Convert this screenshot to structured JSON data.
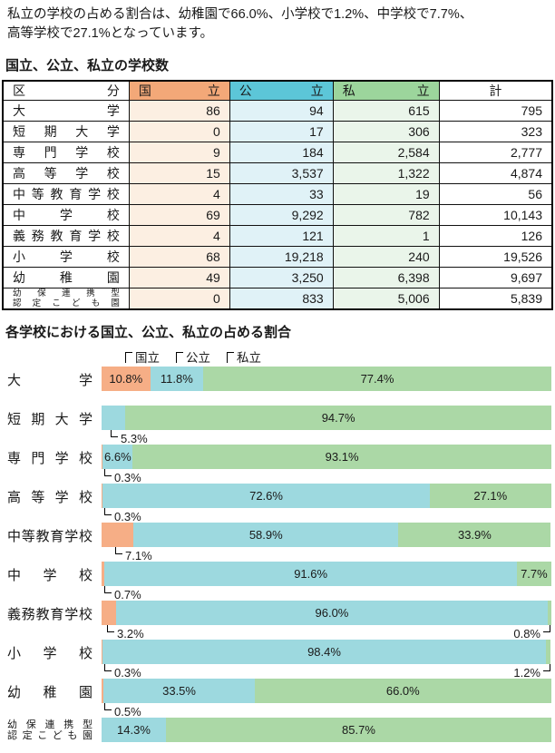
{
  "intro": {
    "line1": "私立の学校の占める割合は、幼稚園で66.0%、小学校で1.2%、中学校で7.7%、",
    "line2": "高等学校で27.1%となっています。"
  },
  "colors": {
    "national_header": "#F3A878",
    "public_header": "#5CC6D8",
    "private_header": "#9CD59C",
    "national_cell": "#FCEFE2",
    "public_cell": "#E0F2F7",
    "private_cell": "#EAF5EA",
    "national_bar": "#F6AE86",
    "public_bar": "#9DD9DF",
    "private_bar": "#ABD8A6"
  },
  "table_section": {
    "title": "国立、公立、私立の学校数",
    "headers": {
      "category": "区分",
      "national": "国立",
      "public": "公立",
      "private": "私立",
      "total": "計"
    },
    "rows": [
      {
        "label": "大学",
        "national": "86",
        "public": "94",
        "private": "615",
        "total": "795"
      },
      {
        "label": "短期大学",
        "national": "0",
        "public": "17",
        "private": "306",
        "total": "323"
      },
      {
        "label": "専門学校",
        "national": "9",
        "public": "184",
        "private": "2,584",
        "total": "2,777"
      },
      {
        "label": "高等学校",
        "national": "15",
        "public": "3,537",
        "private": "1,322",
        "total": "4,874"
      },
      {
        "label": "中等教育学校",
        "national": "4",
        "public": "33",
        "private": "19",
        "total": "56"
      },
      {
        "label": "中学校",
        "national": "69",
        "public": "9,292",
        "private": "782",
        "total": "10,143"
      },
      {
        "label": "義務教育学校",
        "national": "4",
        "public": "121",
        "private": "1",
        "total": "126"
      },
      {
        "label": "小学校",
        "national": "68",
        "public": "19,218",
        "private": "240",
        "total": "19,526"
      },
      {
        "label": "幼稚園",
        "national": "49",
        "public": "3,250",
        "private": "6,398",
        "total": "9,697"
      },
      {
        "label": "幼保連携型",
        "label2": "認定こども園",
        "national": "0",
        "public": "833",
        "private": "5,006",
        "total": "5,839"
      }
    ]
  },
  "chart_section": {
    "title": "各学校における国立、公立、私立の占める割合",
    "legend": {
      "national": "国立",
      "public": "公立",
      "private": "私立"
    },
    "rows": [
      {
        "label": "大学",
        "segments": {
          "national": {
            "pct": 10.8,
            "text": "10.8%"
          },
          "public": {
            "pct": 11.8,
            "text": "11.8%"
          },
          "private": {
            "pct": 77.4,
            "text": "77.4%"
          }
        }
      },
      {
        "label": "短期大学",
        "segments": {
          "national": {
            "pct": 0,
            "text": ""
          },
          "public": {
            "pct": 5.3,
            "text": ""
          },
          "private": {
            "pct": 94.7,
            "text": "94.7%"
          }
        },
        "callout_left": {
          "text": "5.3%",
          "x": 10
        }
      },
      {
        "label": "専門学校",
        "segments": {
          "national": {
            "pct": 0.3,
            "text": ""
          },
          "public": {
            "pct": 6.6,
            "text": "6.6%"
          },
          "private": {
            "pct": 93.1,
            "text": "93.1%"
          }
        },
        "callout_left": {
          "text": "0.3%",
          "x": 3
        }
      },
      {
        "label": "高等学校",
        "segments": {
          "national": {
            "pct": 0.3,
            "text": ""
          },
          "public": {
            "pct": 72.6,
            "text": "72.6%"
          },
          "private": {
            "pct": 27.1,
            "text": "27.1%"
          }
        },
        "callout_left": {
          "text": "0.3%",
          "x": 3
        }
      },
      {
        "label": "中等教育学校",
        "segments": {
          "national": {
            "pct": 7.1,
            "text": ""
          },
          "public": {
            "pct": 58.9,
            "text": "58.9%"
          },
          "private": {
            "pct": 33.9,
            "text": "33.9%"
          }
        },
        "callout_left": {
          "text": "7.1%",
          "x": 15
        }
      },
      {
        "label": "中学校",
        "segments": {
          "national": {
            "pct": 0.7,
            "text": ""
          },
          "public": {
            "pct": 91.6,
            "text": "91.6%"
          },
          "private": {
            "pct": 7.7,
            "text": "7.7%"
          }
        },
        "callout_left": {
          "text": "0.7%",
          "x": 3
        }
      },
      {
        "label": "義務教育学校",
        "segments": {
          "national": {
            "pct": 3.2,
            "text": ""
          },
          "public": {
            "pct": 96.0,
            "text": "96.0%"
          },
          "private": {
            "pct": 0.8,
            "text": ""
          }
        },
        "callout_left": {
          "text": "3.2%",
          "x": 6
        },
        "callout_right": {
          "text": "0.8%"
        }
      },
      {
        "label": "小学校",
        "segments": {
          "national": {
            "pct": 0.3,
            "text": ""
          },
          "public": {
            "pct": 98.4,
            "text": "98.4%"
          },
          "private": {
            "pct": 1.2,
            "text": ""
          }
        },
        "callout_left": {
          "text": "0.3%",
          "x": 3
        },
        "callout_right": {
          "text": "1.2%"
        }
      },
      {
        "label": "幼稚園",
        "segments": {
          "national": {
            "pct": 0.5,
            "text": ""
          },
          "public": {
            "pct": 33.5,
            "text": "33.5%"
          },
          "private": {
            "pct": 66.0,
            "text": "66.0%"
          }
        },
        "callout_left": {
          "text": "0.5%",
          "x": 3
        }
      },
      {
        "label": "幼保連携型",
        "label2": "認定こども園",
        "segments": {
          "national": {
            "pct": 0,
            "text": ""
          },
          "public": {
            "pct": 14.3,
            "text": "14.3%"
          },
          "private": {
            "pct": 85.7,
            "text": "85.7%"
          }
        }
      }
    ]
  },
  "chart_data": {
    "type": "bar",
    "stacked": true,
    "orientation": "horizontal",
    "unit": "%",
    "title": "各学校における国立、公立、私立の占める割合",
    "categories": [
      "大学",
      "短期大学",
      "専門学校",
      "高等学校",
      "中等教育学校",
      "中学校",
      "義務教育学校",
      "小学校",
      "幼稚園",
      "幼保連携型認定こども園"
    ],
    "series": [
      {
        "name": "国立",
        "color": "#F6AE86",
        "values": [
          10.8,
          0,
          0.3,
          0.3,
          7.1,
          0.7,
          3.2,
          0.3,
          0.5,
          0
        ]
      },
      {
        "name": "公立",
        "color": "#9DD9DF",
        "values": [
          11.8,
          5.3,
          6.6,
          72.6,
          58.9,
          91.6,
          96.0,
          98.4,
          33.5,
          14.3
        ]
      },
      {
        "name": "私立",
        "color": "#ABD8A6",
        "values": [
          77.4,
          94.7,
          93.1,
          27.1,
          33.9,
          7.7,
          0.8,
          1.2,
          66.0,
          85.7
        ]
      }
    ],
    "xlim": [
      0,
      100
    ],
    "legend_position": "top",
    "grid": false
  }
}
